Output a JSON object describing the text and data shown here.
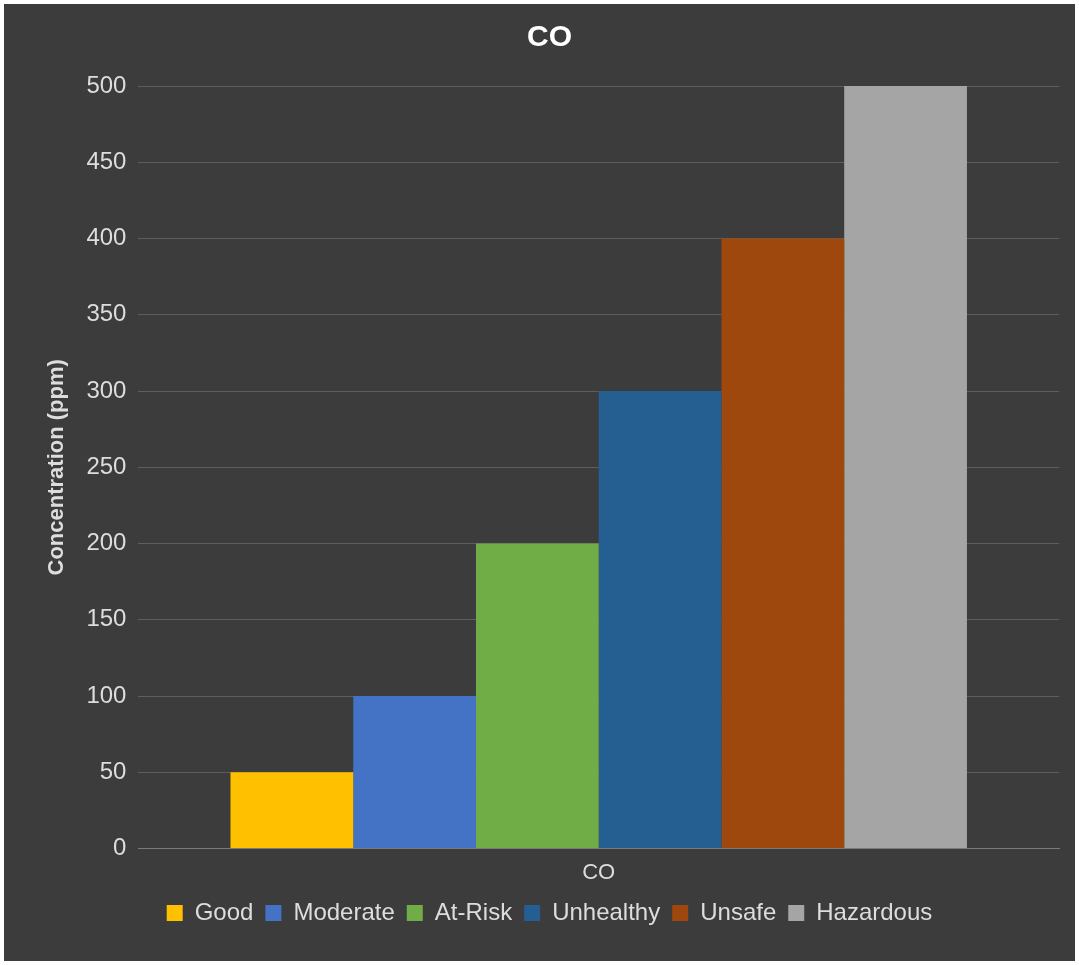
{
  "chart_data": {
    "type": "bar",
    "title": "CO",
    "ylabel": "Concentration (ppm)",
    "categories": [
      "CO"
    ],
    "series": [
      {
        "name": "Good",
        "color": "#ffc000",
        "values": [
          50
        ]
      },
      {
        "name": "Moderate",
        "color": "#4472c4",
        "values": [
          100
        ]
      },
      {
        "name": "At-Risk",
        "color": "#70ad47",
        "values": [
          200
        ]
      },
      {
        "name": "Unhealthy",
        "color": "#255e91",
        "values": [
          300
        ]
      },
      {
        "name": "Unsafe",
        "color": "#9e480e",
        "values": [
          400
        ]
      },
      {
        "name": "Hazardous",
        "color": "#a5a5a5",
        "values": [
          500
        ]
      }
    ],
    "ylim": [
      0,
      500
    ],
    "yticks": [
      0,
      50,
      100,
      150,
      200,
      250,
      300,
      350,
      400,
      450,
      500
    ],
    "grid": "y",
    "legend": "bottom"
  }
}
